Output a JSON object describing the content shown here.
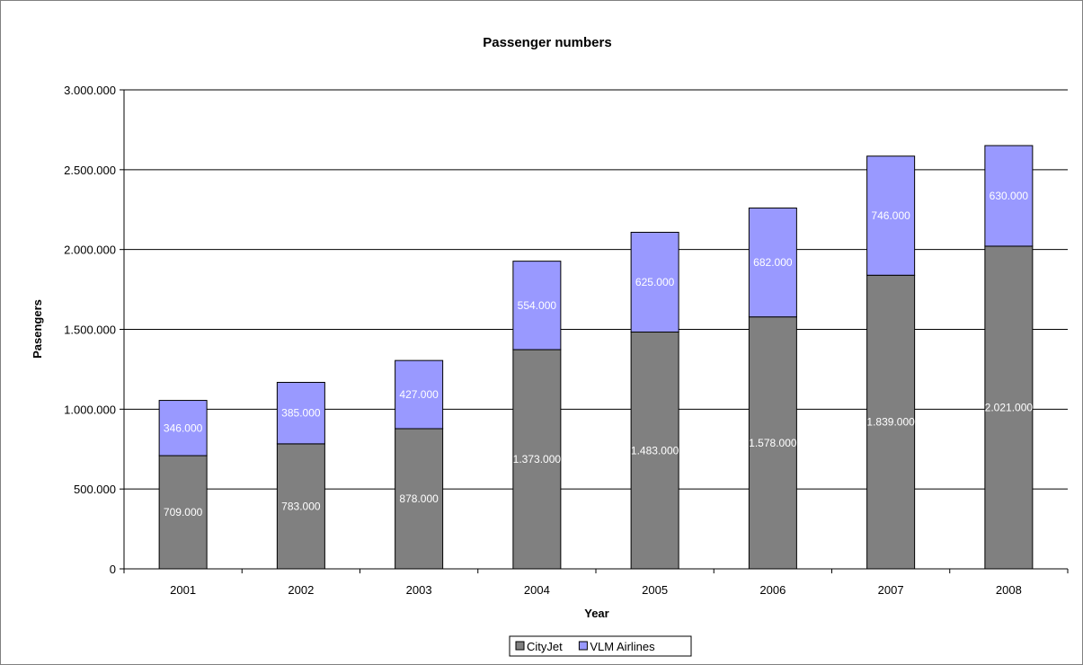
{
  "chart_data": {
    "type": "bar",
    "stacked": true,
    "title": "Passenger numbers",
    "xlabel": "Year",
    "ylabel": "Pasengers",
    "categories": [
      "2001",
      "2002",
      "2003",
      "2004",
      "2005",
      "2006",
      "2007",
      "2008"
    ],
    "series": [
      {
        "name": "CityJet",
        "color": "#808080",
        "values": [
          709000,
          783000,
          878000,
          1373000,
          1483000,
          1578000,
          1839000,
          2021000
        ],
        "labels": [
          "709.000",
          "783.000",
          "878.000",
          "1.373.000",
          "1.483.000",
          "1.578.000",
          "1.839.000",
          "2.021.000"
        ]
      },
      {
        "name": "VLM Airlines",
        "color": "#9999ff",
        "values": [
          346000,
          385000,
          427000,
          554000,
          625000,
          682000,
          746000,
          630000
        ],
        "labels": [
          "346.000",
          "385.000",
          "427.000",
          "554.000",
          "625.000",
          "682.000",
          "746.000",
          "630.000"
        ]
      }
    ],
    "ylim": [
      0,
      3000000
    ],
    "yticks": [
      0,
      500000,
      1000000,
      1500000,
      2000000,
      2500000,
      3000000
    ],
    "ytick_labels": [
      "0",
      "500.000",
      "1.000.000",
      "1.500.000",
      "2.000.000",
      "2.500.000",
      "3.000.000"
    ],
    "grid": true,
    "legend_position": "bottom"
  }
}
